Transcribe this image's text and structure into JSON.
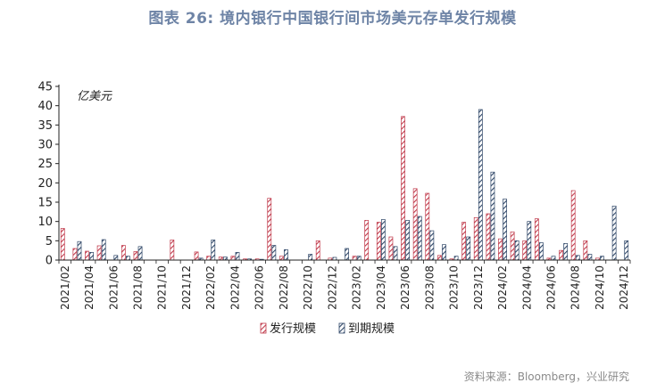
{
  "title": "图表 26: 境内银行中国银行间市场美元存单发行规模",
  "source": "资料来源：Bloomberg，兴业研究",
  "chart_data": {
    "type": "bar",
    "unit_label": "亿美元",
    "ylim": [
      0,
      45
    ],
    "yticks": [
      0,
      5,
      10,
      15,
      20,
      25,
      30,
      35,
      40,
      45
    ],
    "grid": false,
    "legend_position": "bottom",
    "categories": [
      "2021/02",
      "2021/03",
      "2021/04",
      "2021/05",
      "2021/06",
      "2021/07",
      "2021/08",
      "2021/09",
      "2021/10",
      "2021/11",
      "2021/12",
      "2022/01",
      "2022/02",
      "2022/03",
      "2022/04",
      "2022/05",
      "2022/06",
      "2022/07",
      "2022/08",
      "2022/09",
      "2022/10",
      "2022/11",
      "2022/12",
      "2023/01",
      "2023/02",
      "2023/03",
      "2023/04",
      "2023/05",
      "2023/06",
      "2023/07",
      "2023/08",
      "2023/09",
      "2023/10",
      "2023/11",
      "2023/12",
      "2024/01",
      "2024/02",
      "2024/03",
      "2024/04",
      "2024/05",
      "2024/06",
      "2024/07",
      "2024/08",
      "2024/09",
      "2024/10",
      "2024/11",
      "2024/12"
    ],
    "xtick_labels": [
      "2021/02",
      "2021/04",
      "2021/06",
      "2021/08",
      "2021/10",
      "2021/12",
      "2022/02",
      "2022/04",
      "2022/06",
      "2022/08",
      "2022/10",
      "2022/12",
      "2023/02",
      "2023/04",
      "2023/06",
      "2023/08",
      "2023/10",
      "2023/12",
      "2024/02",
      "2024/04",
      "2024/06",
      "2024/08",
      "2024/10",
      "2024/12"
    ],
    "series": [
      {
        "name": "发行规模",
        "color": "#c0394a",
        "values": [
          8.2,
          3.0,
          2.3,
          3.7,
          0,
          3.8,
          2.2,
          0,
          0,
          5.2,
          0,
          2.1,
          1.0,
          0.8,
          1.0,
          0.3,
          0.3,
          16.0,
          1.0,
          0,
          0,
          5.0,
          0.5,
          0,
          1.0,
          10.3,
          9.8,
          6.0,
          37.2,
          18.5,
          17.3,
          1.2,
          0.3,
          9.8,
          11.0,
          12.0,
          5.5,
          7.3,
          5.0,
          10.7,
          0.5,
          2.5,
          18.0,
          5.0,
          0.5,
          0,
          0
        ]
      },
      {
        "name": "到期规模",
        "color": "#2d4566",
        "values": [
          0,
          4.8,
          2.0,
          5.3,
          1.2,
          1.0,
          3.5,
          0,
          0,
          0,
          0,
          0.5,
          5.2,
          0.8,
          2.0,
          0.3,
          0.2,
          3.8,
          2.7,
          0,
          1.5,
          0,
          0.7,
          3.0,
          1.0,
          0,
          10.5,
          3.5,
          10.3,
          11.3,
          7.6,
          4.0,
          1.0,
          6.0,
          39.0,
          22.8,
          15.8,
          5.0,
          10.0,
          4.5,
          1.0,
          4.3,
          1.2,
          1.5,
          1.0,
          14.0,
          5.0
        ]
      }
    ]
  }
}
